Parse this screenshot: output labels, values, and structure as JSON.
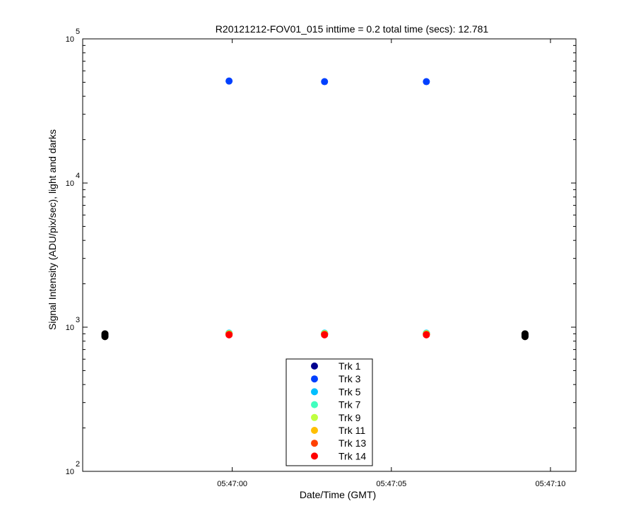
{
  "chart_data": {
    "type": "scatter",
    "title": "R20121212-FOV01_015 inttime = 0.2 total time (secs): 12.781",
    "xlabel": "Date/Time (GMT)",
    "ylabel": "Signal Intensity (ADU/pix/sec), light and darks",
    "y_scale": "log",
    "ylim": [
      100,
      100000
    ],
    "xlim": [
      "05:46:55.3",
      "05:47:10.8"
    ],
    "x_ticks": [
      "05:47:00",
      "05:47:05",
      "05:47:10"
    ],
    "y_ticks": [
      {
        "value": 100,
        "base": "10",
        "exp": "2"
      },
      {
        "value": 1000,
        "base": "10",
        "exp": "3"
      },
      {
        "value": 10000,
        "base": "10",
        "exp": "4"
      },
      {
        "value": 100000,
        "base": "10",
        "exp": "5"
      }
    ],
    "grid": false,
    "legend_position": "bottom-center",
    "series": [
      {
        "name": "Trk 1",
        "color": "#00008f",
        "x": [
          "05:46:59.9",
          "05:47:02.9",
          "05:47:06.1"
        ],
        "y": [
          905,
          905,
          905
        ]
      },
      {
        "name": "Trk 3",
        "color": "#0040ff",
        "x": [
          "05:46:59.9",
          "05:47:02.9",
          "05:47:06.1"
        ],
        "y": [
          51000,
          50500,
          50500
        ]
      },
      {
        "name": "Trk 5",
        "color": "#00bfff",
        "x": [
          "05:46:59.9",
          "05:47:02.9",
          "05:47:06.1"
        ],
        "y": [
          910,
          910,
          910
        ]
      },
      {
        "name": "Trk 7",
        "color": "#40ffbf",
        "x": [
          "05:46:59.9",
          "05:47:02.9",
          "05:47:06.1"
        ],
        "y": [
          905,
          905,
          905
        ]
      },
      {
        "name": "Trk 9",
        "color": "#bfff40",
        "x": [
          "05:46:59.9",
          "05:47:02.9",
          "05:47:06.1"
        ],
        "y": [
          900,
          900,
          900
        ]
      },
      {
        "name": "Trk 11",
        "color": "#ffbf00",
        "x": [
          "05:46:59.9",
          "05:47:02.9",
          "05:47:06.1"
        ],
        "y": [
          895,
          895,
          895
        ]
      },
      {
        "name": "Trk 13",
        "color": "#ff4000",
        "x": [
          "05:46:59.9",
          "05:47:02.9",
          "05:47:06.1"
        ],
        "y": [
          890,
          890,
          890
        ]
      },
      {
        "name": "Trk 14",
        "color": "#ff0000",
        "x": [
          "05:46:59.9",
          "05:47:02.9",
          "05:47:06.1"
        ],
        "y": [
          885,
          885,
          885
        ]
      }
    ],
    "dark_points": {
      "color": "#000000",
      "x": [
        "05:46:56.0",
        "05:46:56.0",
        "05:46:56.0",
        "05:46:56.0",
        "05:47:09.2",
        "05:47:09.2",
        "05:47:09.2",
        "05:47:09.2"
      ],
      "y": [
        900,
        885,
        870,
        860,
        900,
        885,
        870,
        860
      ]
    }
  }
}
